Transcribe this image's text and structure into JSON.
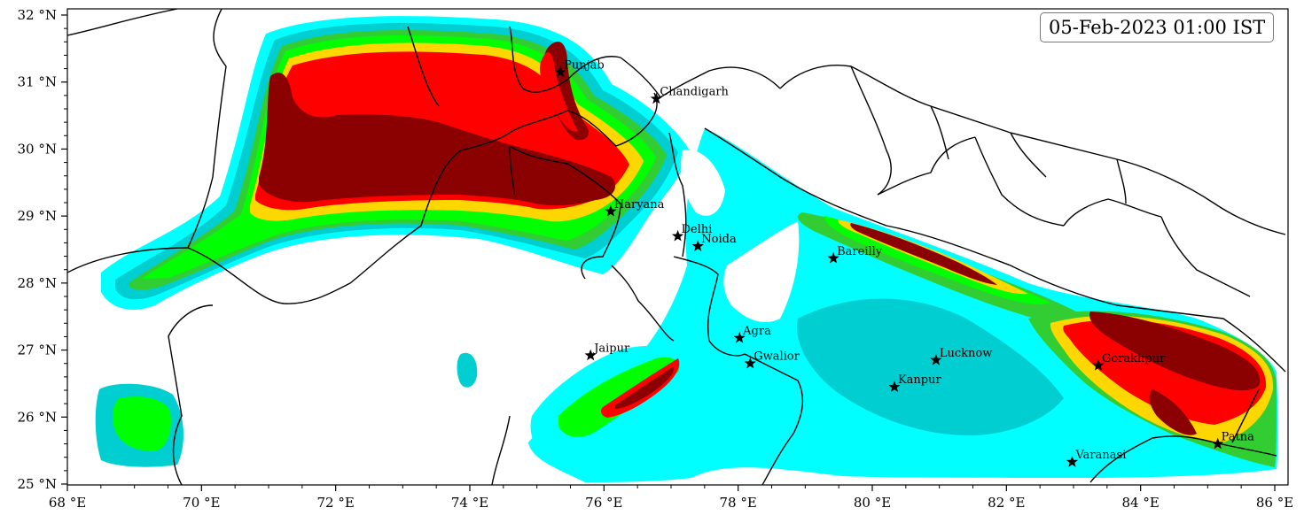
{
  "timestamp": "05-Feb-2023 01:00 IST",
  "map": {
    "lon_range": [
      68,
      86.2
    ],
    "lat_range": [
      25,
      32.1
    ],
    "x_ticks": [
      {
        "value": 68,
        "label": "68 °E"
      },
      {
        "value": 70,
        "label": "70 °E"
      },
      {
        "value": 72,
        "label": "72 °E"
      },
      {
        "value": 74,
        "label": "74 °E"
      },
      {
        "value": 76,
        "label": "76 °E"
      },
      {
        "value": 78,
        "label": "78 °E"
      },
      {
        "value": 80,
        "label": "80 °E"
      },
      {
        "value": 82,
        "label": "82 °E"
      },
      {
        "value": 84,
        "label": "84 °E"
      },
      {
        "value": 86,
        "label": "86 °E"
      }
    ],
    "y_ticks": [
      {
        "value": 25,
        "label": "25 °N"
      },
      {
        "value": 26,
        "label": "26 °N"
      },
      {
        "value": 27,
        "label": "27 °N"
      },
      {
        "value": 28,
        "label": "28 °N"
      },
      {
        "value": 29,
        "label": "29 °N"
      },
      {
        "value": 30,
        "label": "30 °N"
      },
      {
        "value": 31,
        "label": "31 °N"
      },
      {
        "value": 32,
        "label": "32 °N"
      }
    ],
    "cities": [
      {
        "name": "Punjab",
        "lon": 75.35,
        "lat": 31.15
      },
      {
        "name": "Chandigarh",
        "lon": 76.78,
        "lat": 30.75
      },
      {
        "name": "Haryana",
        "lon": 76.1,
        "lat": 29.07
      },
      {
        "name": "Delhi",
        "lon": 77.1,
        "lat": 28.7
      },
      {
        "name": "Noida",
        "lon": 77.4,
        "lat": 28.55
      },
      {
        "name": "Bareilly",
        "lon": 79.42,
        "lat": 28.37
      },
      {
        "name": "Agra",
        "lon": 78.02,
        "lat": 27.18
      },
      {
        "name": "Jaipur",
        "lon": 75.8,
        "lat": 26.92
      },
      {
        "name": "Gwalior",
        "lon": 78.18,
        "lat": 26.8
      },
      {
        "name": "Lucknow",
        "lon": 80.95,
        "lat": 26.85
      },
      {
        "name": "Kanpur",
        "lon": 80.33,
        "lat": 26.45
      },
      {
        "name": "Gorakhpur",
        "lon": 83.37,
        "lat": 26.77
      },
      {
        "name": "Patna",
        "lon": 85.15,
        "lat": 25.6
      },
      {
        "name": "Varanasi",
        "lon": 82.98,
        "lat": 25.33
      }
    ],
    "level_colors": [
      "#00ffff",
      "#00ced1",
      "#32cd32",
      "#00ff00",
      "#ffd700",
      "#ff0000",
      "#8b0000"
    ]
  }
}
